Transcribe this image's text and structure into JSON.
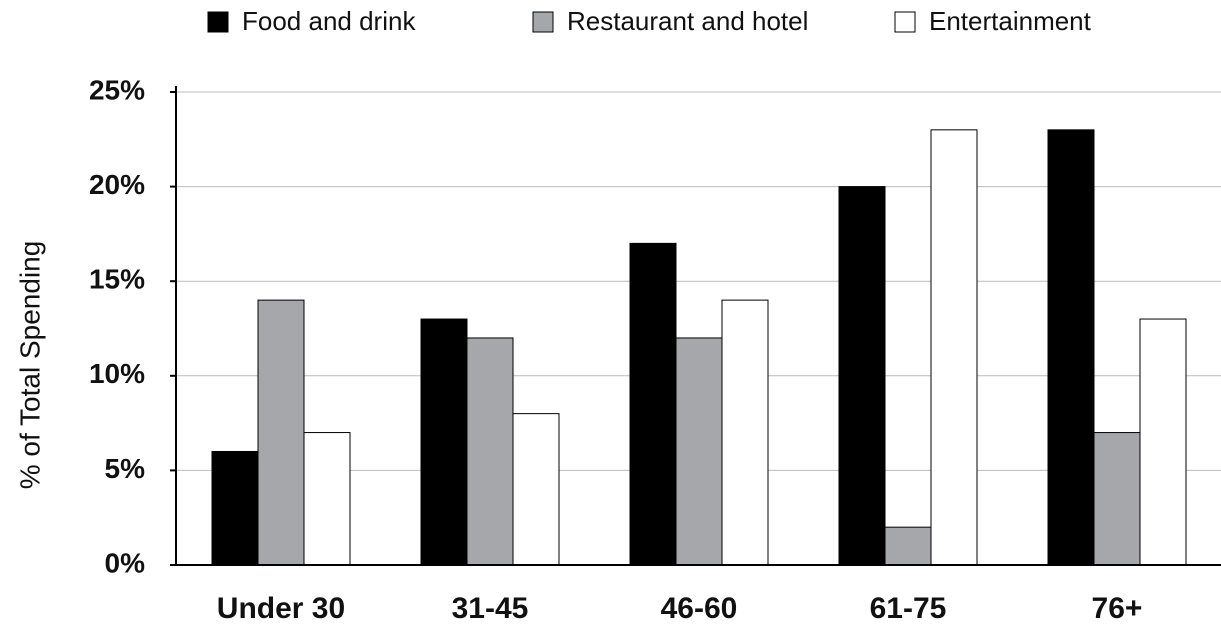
{
  "chart_data": {
    "type": "bar",
    "y_label": "% of Total Spending",
    "categories": [
      "Under 30",
      "31-45",
      "46-60",
      "61-75",
      "76+"
    ],
    "series": [
      {
        "name": "Food and drink",
        "color": "#000000",
        "values": [
          6,
          13,
          17,
          20,
          23
        ]
      },
      {
        "name": "Restaurant and hotel",
        "color": "#a6a7aa",
        "values": [
          14,
          12,
          12,
          2,
          7
        ]
      },
      {
        "name": "Entertainment",
        "color": "#ffffff",
        "values": [
          7,
          8,
          14,
          23,
          13
        ]
      }
    ],
    "ylim": [
      0,
      25
    ],
    "yticks": [
      {
        "value": 0,
        "label": "0%"
      },
      {
        "value": 5,
        "label": "5%"
      },
      {
        "value": 10,
        "label": "10%"
      },
      {
        "value": 15,
        "label": "15%"
      },
      {
        "value": 20,
        "label": "20%"
      },
      {
        "value": 25,
        "label": "25%"
      }
    ],
    "grid": true,
    "legend": "top"
  }
}
